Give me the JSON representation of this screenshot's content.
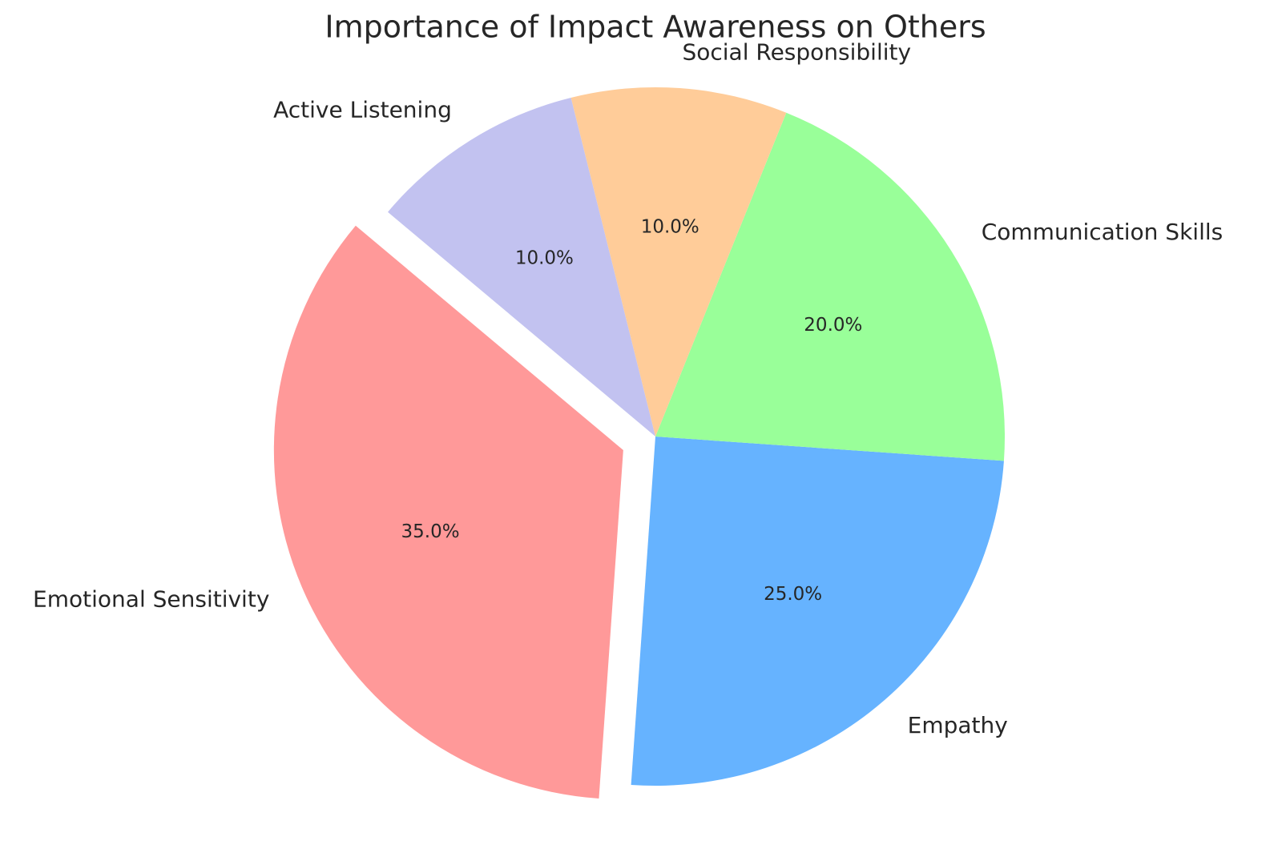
{
  "chart_data": {
    "type": "pie",
    "title": "Importance of Impact Awareness on Others",
    "categories": [
      "Emotional Sensitivity",
      "Empathy",
      "Communication Skills",
      "Social Responsibility",
      "Active Listening"
    ],
    "values": [
      35.0,
      25.0,
      20.0,
      10.0,
      10.0
    ],
    "percent_labels": [
      "35.0%",
      "25.0%",
      "20.0%",
      "10.0%",
      "10.0%"
    ],
    "colors": [
      "#ff9999",
      "#66b3ff",
      "#99ff99",
      "#ffcc99",
      "#c2c2f0"
    ],
    "exploded": [
      "Emotional Sensitivity"
    ],
    "start_angle_deg": 140,
    "direction": "counterclockwise",
    "legend": "none"
  }
}
